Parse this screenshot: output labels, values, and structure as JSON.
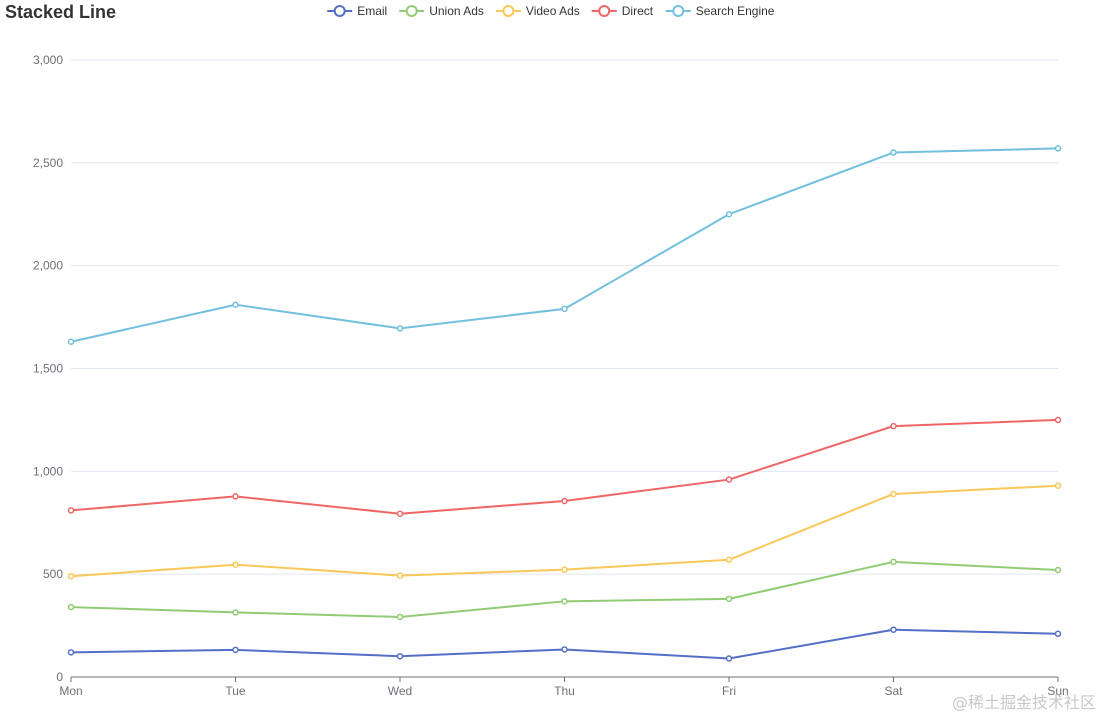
{
  "chart_data": {
    "type": "line",
    "title": "Stacked Line",
    "categories": [
      "Mon",
      "Tue",
      "Wed",
      "Thu",
      "Fri",
      "Sat",
      "Sun"
    ],
    "ylim": [
      0,
      3000
    ],
    "yticks": [
      0,
      500,
      1000,
      1500,
      2000,
      2500,
      3000
    ],
    "ytick_labels": [
      "0",
      "500",
      "1,000",
      "1,500",
      "2,000",
      "2,500",
      "3,000"
    ],
    "xlabel": "",
    "ylabel": "",
    "grid": true,
    "legend_position": "top-center",
    "stacked": true,
    "series": [
      {
        "name": "Email",
        "color": "#5470c6",
        "values": [
          120,
          132,
          101,
          134,
          90,
          230,
          210
        ]
      },
      {
        "name": "Union Ads",
        "color": "#91cc75",
        "values": [
          220,
          182,
          191,
          234,
          290,
          330,
          310
        ]
      },
      {
        "name": "Video Ads",
        "color": "#fac858",
        "values": [
          150,
          232,
          201,
          154,
          190,
          330,
          410
        ]
      },
      {
        "name": "Direct",
        "color": "#ee6666",
        "values": [
          320,
          332,
          301,
          334,
          390,
          330,
          320
        ]
      },
      {
        "name": "Search Engine",
        "color": "#73c0de",
        "values": [
          820,
          932,
          901,
          934,
          1290,
          1330,
          1320
        ]
      }
    ]
  },
  "watermark": "@稀土掘金技术社区"
}
